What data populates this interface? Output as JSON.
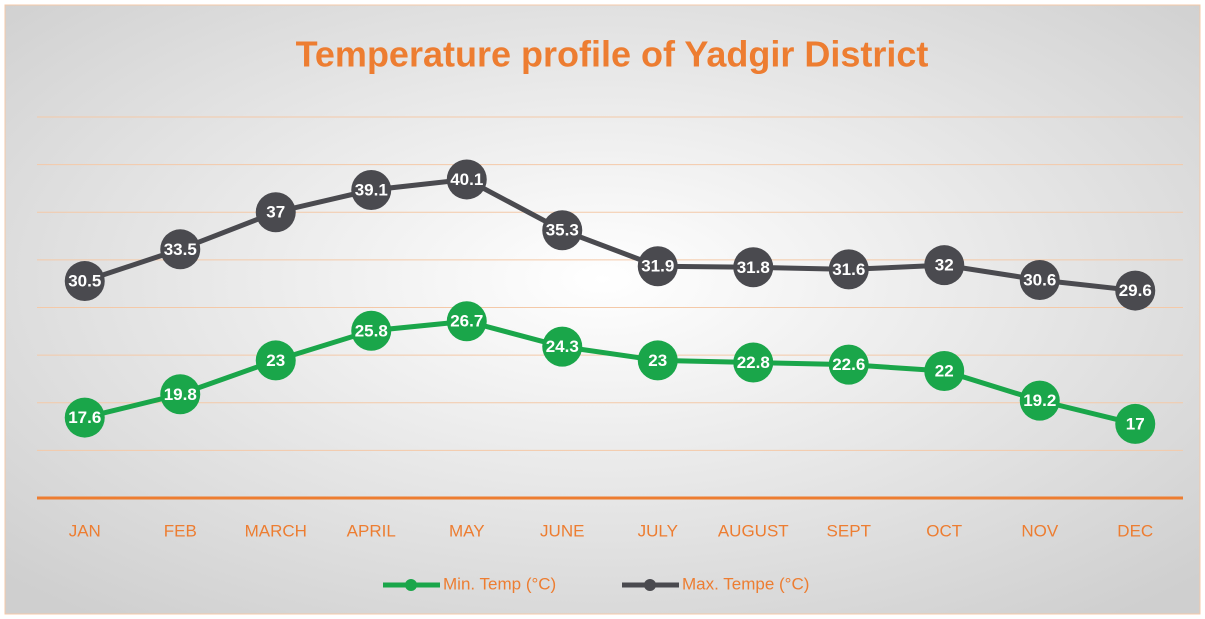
{
  "chart_data": {
    "type": "line",
    "title": "Temperature profile of Yadgir District",
    "categories": [
      "JAN",
      "FEB",
      "MARCH",
      "APRIL",
      "MAY",
      "JUNE",
      "JULY",
      "AUGUST",
      "SEPT",
      "OCT",
      "NOV",
      "DEC"
    ],
    "series": [
      {
        "name": "Min. Temp (°C)",
        "color": "#1aa64a",
        "values": [
          17.6,
          19.8,
          23,
          25.8,
          26.7,
          24.3,
          23,
          22.8,
          22.6,
          22,
          19.2,
          17
        ]
      },
      {
        "name": "Max. Tempe (°C)",
        "color": "#4a4a4f",
        "values": [
          30.5,
          33.5,
          37,
          39.1,
          40.1,
          35.3,
          31.9,
          31.8,
          31.6,
          32,
          30.6,
          29.6
        ]
      }
    ],
    "ylim": [
      10,
      46
    ],
    "yticks": [
      10,
      14.5,
      19,
      23.5,
      28,
      32.5,
      37,
      41.5,
      46
    ],
    "grid": true,
    "legend": "bottom"
  }
}
